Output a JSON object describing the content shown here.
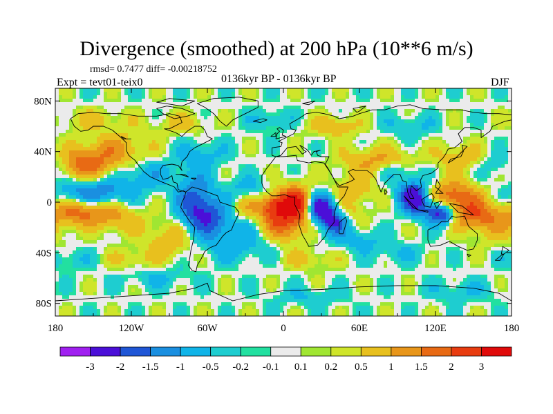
{
  "chart_data": {
    "type": "heatmap",
    "title": "Divergence (smoothed) at 200 hPa (10**6 m/s)",
    "stats_label": "rmsd= 0.7477 diff= -0.00218752",
    "experiment_label": "Expt = tevt01-teix0",
    "period_label": "0136kyr BP - 0136kyr BP",
    "season_label": "DJF",
    "x_ticks": [
      "180",
      "120W",
      "60W",
      "0",
      "60E",
      "120E",
      "180"
    ],
    "y_ticks": [
      "80N",
      "40N",
      "0",
      "40S",
      "80S"
    ],
    "xlim": [
      -180,
      180
    ],
    "ylim": [
      -90,
      90
    ],
    "colorbar": {
      "levels": [
        "-3",
        "-2",
        "-1.5",
        "-1",
        "-0.5",
        "-0.2",
        "-0.1",
        "0.1",
        "0.2",
        "0.5",
        "1",
        "1.5",
        "2",
        "3"
      ],
      "colors": [
        "#a020f0",
        "#4b0fd8",
        "#1f56d6",
        "#1a8fe0",
        "#10b4e8",
        "#1ecdd0",
        "#22e0a0",
        "#ebebeb",
        "#a0e632",
        "#cfe52a",
        "#e8c01e",
        "#e8961a",
        "#e86a14",
        "#e83c10",
        "#e00a0a"
      ]
    }
  }
}
